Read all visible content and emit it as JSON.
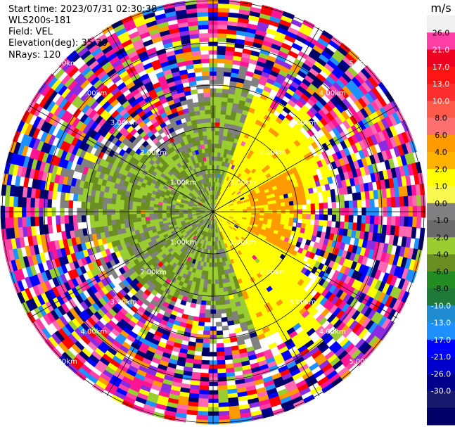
{
  "header": {
    "start_time": "Start time: 2023/07/31 02:30:38",
    "instrument": "WLS200s-181",
    "field": "Field: VEL",
    "elevation": "Elevation(deg): 35.30",
    "nrays": "NRays: 120"
  },
  "chart_data": {
    "type": "polar-ppi",
    "field": "VEL",
    "units": "m/s",
    "nrays": 120,
    "elevation_deg": 35.3,
    "range_rings_km": [
      1.0,
      2.0,
      3.0,
      4.0,
      5.0
    ],
    "ring_label_units": "km",
    "ring_labels": [
      "1.00km",
      "2.00km",
      "3.00km",
      "4.00km",
      "5.00km"
    ],
    "colorbar": {
      "label": "m/s",
      "vmin": -30,
      "vmax": 30,
      "ticks": [
        "26.0",
        "21.0",
        "17.0",
        "13.0",
        "10.0",
        "8.0",
        "6.0",
        "4.0",
        "2.0",
        "1.0",
        "0.0",
        "-1.0",
        "-2.0",
        "-4.0",
        "-6.0",
        "-8.0",
        "-10.0",
        "-13.0",
        "-17.0",
        "-21.0",
        "-26.0",
        "-30.0"
      ],
      "colors": [
        "#f0f0f0",
        "#ff3fa6",
        "#ee0020",
        "#ff1414",
        "#ff2e2e",
        "#ff5a4a",
        "#ff7070",
        "#ff9a00",
        "#ffb300",
        "#ffff00",
        "#f8f850",
        "#808080",
        "#6a6a6a",
        "#9acd32",
        "#6b8e23",
        "#228b22",
        "#1f7a3a",
        "#1f8bd0",
        "#1e90ff",
        "#0000ff",
        "#0000cd",
        "#00008b",
        "#191970",
        "#000066"
      ]
    },
    "grid": true,
    "colors": {
      "near_away": "#ffff00",
      "mid_away": "#ff9a00",
      "near_toward": "#9acd32",
      "mid_toward": "#6b8e23",
      "gray": "#808080",
      "noise": [
        "#ff1493",
        "#ff3fa6",
        "#0000ff",
        "#00008b",
        "#ffff00",
        "#ff0000",
        "#9acd32",
        "#000066",
        "#ff9a00",
        "#1e90ff",
        "#8a2be2",
        "#ff69b4"
      ]
    }
  }
}
